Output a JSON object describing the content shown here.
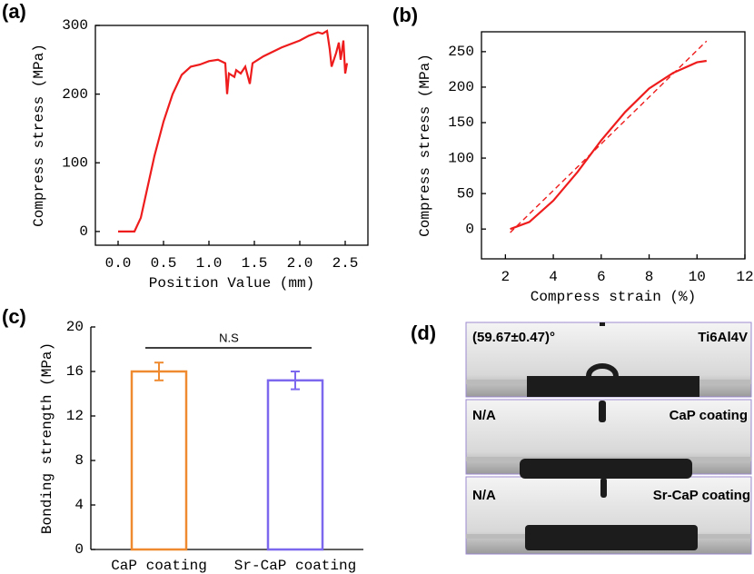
{
  "panel_labels": [
    "(a)",
    "(b)",
    "(c)",
    "(d)"
  ],
  "chart_data": [
    {
      "type": "line",
      "xlabel": "Position Value (mm)",
      "ylabel": "Compress stress (MPa)",
      "xlim": [
        -0.25,
        2.75
      ],
      "ylim": [
        -20,
        300
      ],
      "xticks": [
        {
          "value": 0,
          "label": "0.0"
        },
        0.5,
        {
          "value": 1,
          "label": "1.0"
        },
        1.5,
        {
          "value": 2,
          "label": "2.0"
        },
        2.5
      ],
      "yticks": [
        0,
        100,
        200,
        300
      ],
      "series": [
        {
          "color": "#ee1c1c",
          "dashed": false,
          "x": [
            0,
            0.18,
            0.25,
            0.3,
            0.4,
            0.5,
            0.6,
            0.7,
            0.8,
            0.9,
            1.0,
            1.1,
            1.18,
            1.2,
            1.22,
            1.28,
            1.3,
            1.35,
            1.4,
            1.45,
            1.48,
            1.6,
            1.8,
            2.0,
            2.1,
            2.2,
            2.25,
            2.3,
            2.33,
            2.35,
            2.4,
            2.43,
            2.45,
            2.48,
            2.5,
            2.52
          ],
          "values": [
            0,
            0,
            20,
            50,
            110,
            160,
            200,
            228,
            240,
            243,
            248,
            250,
            245,
            200,
            230,
            225,
            235,
            230,
            240,
            215,
            245,
            255,
            268,
            278,
            285,
            290,
            288,
            292,
            265,
            240,
            260,
            275,
            250,
            278,
            230,
            245
          ]
        }
      ]
    },
    {
      "type": "line",
      "xlabel": "Compress strain (%)",
      "ylabel": "Compress stress (MPa)",
      "xlim": [
        1,
        12
      ],
      "ylim": [
        -42,
        278
      ],
      "xticks": [
        2,
        4,
        6,
        8,
        10,
        12
      ],
      "yticks": [
        0,
        50,
        100,
        150,
        200,
        250
      ],
      "series": [
        {
          "color": "#ee1c1c",
          "dashed": false,
          "x": [
            2.2,
            3,
            4,
            5,
            6,
            7,
            8,
            9,
            10,
            10.4
          ],
          "values": [
            0,
            10,
            40,
            80,
            125,
            165,
            198,
            220,
            235,
            237
          ]
        },
        {
          "color": "#ee1c1c",
          "dashed": true,
          "x": [
            2.2,
            10.4
          ],
          "values": [
            -5,
            265
          ]
        }
      ]
    },
    {
      "type": "bar",
      "ylabel": "Bonding strength (MPa)",
      "categories": [
        "CaP coating",
        "Sr-CaP coating"
      ],
      "values": [
        16,
        15.2
      ],
      "errors": [
        0.8,
        0.8
      ],
      "colors": [
        "#f08a30",
        "#7b68ee"
      ],
      "ylim": [
        0,
        20
      ],
      "yticks": [
        0,
        4,
        8,
        12,
        16,
        20
      ],
      "annotation": "N.S"
    }
  ],
  "contact_angle": {
    "rows": [
      {
        "left": "(59.67±0.47)°",
        "right": "Ti6Al4V"
      },
      {
        "left": "N/A",
        "right": "CaP coating"
      },
      {
        "left": "N/A",
        "right": "Sr-CaP coating"
      }
    ]
  }
}
